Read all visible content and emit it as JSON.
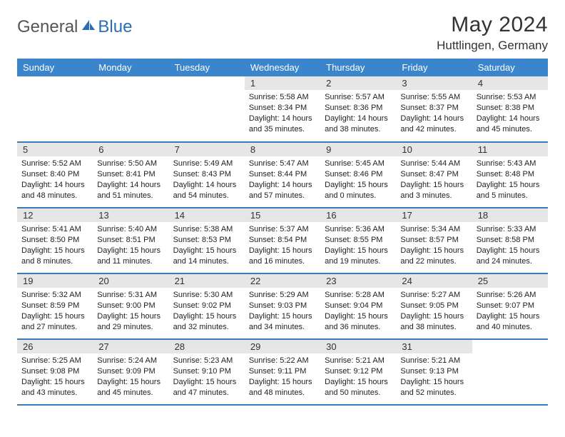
{
  "brand": {
    "general": "General",
    "blue": "Blue"
  },
  "title": "May 2024",
  "location": "Huttlingen, Germany",
  "colors": {
    "header_bg": "#3a85cc",
    "header_text": "#ffffff",
    "daynum_bg": "#e6e6e6",
    "row_border": "#3a7ab5",
    "brand_gray": "#555555",
    "brand_blue": "#2b6fb5"
  },
  "weekdays": [
    "Sunday",
    "Monday",
    "Tuesday",
    "Wednesday",
    "Thursday",
    "Friday",
    "Saturday"
  ],
  "weeks": [
    [
      null,
      null,
      null,
      {
        "n": "1",
        "sr": "5:58 AM",
        "ss": "8:34 PM",
        "dl": "14 hours and 35 minutes."
      },
      {
        "n": "2",
        "sr": "5:57 AM",
        "ss": "8:36 PM",
        "dl": "14 hours and 38 minutes."
      },
      {
        "n": "3",
        "sr": "5:55 AM",
        "ss": "8:37 PM",
        "dl": "14 hours and 42 minutes."
      },
      {
        "n": "4",
        "sr": "5:53 AM",
        "ss": "8:38 PM",
        "dl": "14 hours and 45 minutes."
      }
    ],
    [
      {
        "n": "5",
        "sr": "5:52 AM",
        "ss": "8:40 PM",
        "dl": "14 hours and 48 minutes."
      },
      {
        "n": "6",
        "sr": "5:50 AM",
        "ss": "8:41 PM",
        "dl": "14 hours and 51 minutes."
      },
      {
        "n": "7",
        "sr": "5:49 AM",
        "ss": "8:43 PM",
        "dl": "14 hours and 54 minutes."
      },
      {
        "n": "8",
        "sr": "5:47 AM",
        "ss": "8:44 PM",
        "dl": "14 hours and 57 minutes."
      },
      {
        "n": "9",
        "sr": "5:45 AM",
        "ss": "8:46 PM",
        "dl": "15 hours and 0 minutes."
      },
      {
        "n": "10",
        "sr": "5:44 AM",
        "ss": "8:47 PM",
        "dl": "15 hours and 3 minutes."
      },
      {
        "n": "11",
        "sr": "5:43 AM",
        "ss": "8:48 PM",
        "dl": "15 hours and 5 minutes."
      }
    ],
    [
      {
        "n": "12",
        "sr": "5:41 AM",
        "ss": "8:50 PM",
        "dl": "15 hours and 8 minutes."
      },
      {
        "n": "13",
        "sr": "5:40 AM",
        "ss": "8:51 PM",
        "dl": "15 hours and 11 minutes."
      },
      {
        "n": "14",
        "sr": "5:38 AM",
        "ss": "8:53 PM",
        "dl": "15 hours and 14 minutes."
      },
      {
        "n": "15",
        "sr": "5:37 AM",
        "ss": "8:54 PM",
        "dl": "15 hours and 16 minutes."
      },
      {
        "n": "16",
        "sr": "5:36 AM",
        "ss": "8:55 PM",
        "dl": "15 hours and 19 minutes."
      },
      {
        "n": "17",
        "sr": "5:34 AM",
        "ss": "8:57 PM",
        "dl": "15 hours and 22 minutes."
      },
      {
        "n": "18",
        "sr": "5:33 AM",
        "ss": "8:58 PM",
        "dl": "15 hours and 24 minutes."
      }
    ],
    [
      {
        "n": "19",
        "sr": "5:32 AM",
        "ss": "8:59 PM",
        "dl": "15 hours and 27 minutes."
      },
      {
        "n": "20",
        "sr": "5:31 AM",
        "ss": "9:00 PM",
        "dl": "15 hours and 29 minutes."
      },
      {
        "n": "21",
        "sr": "5:30 AM",
        "ss": "9:02 PM",
        "dl": "15 hours and 32 minutes."
      },
      {
        "n": "22",
        "sr": "5:29 AM",
        "ss": "9:03 PM",
        "dl": "15 hours and 34 minutes."
      },
      {
        "n": "23",
        "sr": "5:28 AM",
        "ss": "9:04 PM",
        "dl": "15 hours and 36 minutes."
      },
      {
        "n": "24",
        "sr": "5:27 AM",
        "ss": "9:05 PM",
        "dl": "15 hours and 38 minutes."
      },
      {
        "n": "25",
        "sr": "5:26 AM",
        "ss": "9:07 PM",
        "dl": "15 hours and 40 minutes."
      }
    ],
    [
      {
        "n": "26",
        "sr": "5:25 AM",
        "ss": "9:08 PM",
        "dl": "15 hours and 43 minutes."
      },
      {
        "n": "27",
        "sr": "5:24 AM",
        "ss": "9:09 PM",
        "dl": "15 hours and 45 minutes."
      },
      {
        "n": "28",
        "sr": "5:23 AM",
        "ss": "9:10 PM",
        "dl": "15 hours and 47 minutes."
      },
      {
        "n": "29",
        "sr": "5:22 AM",
        "ss": "9:11 PM",
        "dl": "15 hours and 48 minutes."
      },
      {
        "n": "30",
        "sr": "5:21 AM",
        "ss": "9:12 PM",
        "dl": "15 hours and 50 minutes."
      },
      {
        "n": "31",
        "sr": "5:21 AM",
        "ss": "9:13 PM",
        "dl": "15 hours and 52 minutes."
      },
      null
    ]
  ],
  "labels": {
    "sunrise": "Sunrise: ",
    "sunset": "Sunset: ",
    "daylight": "Daylight: "
  }
}
